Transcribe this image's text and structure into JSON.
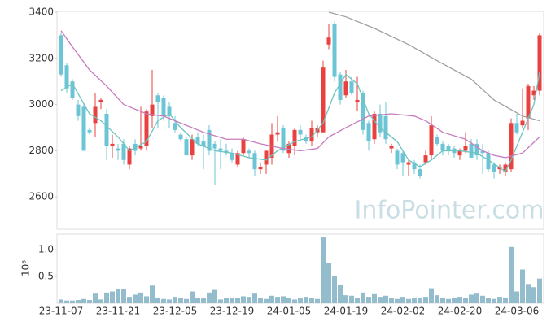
{
  "chart_data": [
    {
      "type": "candlestick",
      "open": [
        3300,
        3170,
        3100,
        3000,
        2990,
        2890,
        2920,
        3010,
        2960,
        2820,
        2810,
        2830,
        2740,
        2830,
        2810,
        2820,
        2950,
        3040,
        3030,
        2990,
        2920,
        2870,
        2850,
        2780,
        2860,
        2840,
        2890,
        2830,
        2810,
        2800,
        2790,
        2740,
        2790,
        2800,
        2790,
        2720,
        2740,
        2770,
        2870,
        2900,
        2790,
        2820,
        2890,
        2860,
        2840,
        2880,
        2880,
        3260,
        3350,
        3130,
        3040,
        3100,
        3010,
        3050,
        2920,
        2850,
        2960,
        2950,
        2810,
        2800,
        2790,
        2740,
        2750,
        2720,
        2750,
        2780,
        2860,
        2830,
        2820,
        2810,
        2780,
        2800,
        2830,
        2830,
        2800,
        2790,
        2740,
        2720,
        2710,
        2720,
        2920,
        2910,
        2940,
        3040,
        3060
      ],
      "high": [
        3310,
        3180,
        3110,
        3020,
        3000,
        2900,
        3050,
        3030,
        2980,
        2870,
        2830,
        2850,
        2820,
        2850,
        2990,
        2980,
        3150,
        3050,
        3040,
        3010,
        2950,
        2880,
        2860,
        2870,
        2880,
        2870,
        2910,
        2840,
        2850,
        2830,
        2810,
        2800,
        2860,
        2810,
        2800,
        2750,
        2800,
        2920,
        2950,
        2910,
        2840,
        2900,
        2910,
        2870,
        2930,
        2910,
        3190,
        3350,
        3360,
        3140,
        3150,
        3120,
        3120,
        3060,
        2930,
        2970,
        3000,
        3010,
        2830,
        2810,
        2800,
        2760,
        2760,
        2740,
        2800,
        2950,
        2870,
        2840,
        2830,
        2820,
        2810,
        2880,
        2850,
        2850,
        2830,
        2800,
        2750,
        2740,
        2750,
        2940,
        2960,
        3070,
        3090,
        3080,
        3310
      ],
      "low": [
        3120,
        3050,
        3020,
        2930,
        2800,
        2870,
        2860,
        2980,
        2760,
        2770,
        2760,
        2740,
        2720,
        2780,
        2800,
        2800,
        2900,
        2900,
        2930,
        2900,
        2880,
        2840,
        2780,
        2760,
        2820,
        2720,
        2780,
        2650,
        2720,
        2780,
        2750,
        2730,
        2780,
        2770,
        2690,
        2700,
        2700,
        2740,
        2840,
        2790,
        2770,
        2780,
        2850,
        2830,
        2820,
        2860,
        2880,
        3240,
        3100,
        3000,
        3030,
        3040,
        2970,
        2870,
        2800,
        2830,
        2860,
        2830,
        2790,
        2720,
        2690,
        2690,
        2700,
        2680,
        2740,
        2760,
        2820,
        2780,
        2780,
        2770,
        2760,
        2790,
        2770,
        2760,
        2700,
        2710,
        2680,
        2700,
        2690,
        2710,
        2870,
        2900,
        2890,
        3020,
        3040
      ],
      "close": [
        3130,
        3070,
        3030,
        2950,
        2800,
        2880,
        2990,
        3020,
        2820,
        2830,
        2800,
        2760,
        2810,
        2800,
        2820,
        2970,
        3000,
        3010,
        2950,
        2950,
        2890,
        2850,
        2780,
        2850,
        2830,
        2820,
        2800,
        2810,
        2800,
        2790,
        2760,
        2790,
        2850,
        2790,
        2720,
        2730,
        2800,
        2870,
        2880,
        2800,
        2830,
        2890,
        2870,
        2840,
        2900,
        2900,
        3160,
        3290,
        3120,
        3020,
        3100,
        3050,
        3020,
        2890,
        2840,
        2960,
        2880,
        2850,
        2820,
        2740,
        2750,
        2750,
        2720,
        2690,
        2780,
        2910,
        2830,
        2800,
        2800,
        2790,
        2800,
        2820,
        2770,
        2780,
        2790,
        2720,
        2710,
        2730,
        2740,
        2920,
        2880,
        2930,
        3080,
        3060,
        3300
      ],
      "up_color": "#e8413f",
      "down_color": "#6cc4d4",
      "series": [
        {
          "color": "#6cc4c0",
          "x": [
            0,
            2,
            5,
            7,
            10,
            12,
            15,
            17,
            19,
            21,
            24,
            27,
            30,
            33,
            36,
            38,
            41,
            44,
            46,
            48,
            50,
            52,
            54,
            56,
            59,
            61,
            63,
            65,
            67,
            70,
            73,
            75,
            78,
            79,
            81,
            83,
            84
          ],
          "values": [
            3060,
            3090,
            2960,
            2930,
            2860,
            2800,
            2840,
            2930,
            2960,
            2900,
            2830,
            2800,
            2790,
            2770,
            2760,
            2800,
            2840,
            2860,
            2920,
            3050,
            3130,
            3090,
            2960,
            2900,
            2840,
            2760,
            2730,
            2760,
            2800,
            2800,
            2790,
            2760,
            2710,
            2760,
            2880,
            3000,
            3140
          ]
        },
        {
          "color": "#c77bbd",
          "x": [
            0,
            2,
            5,
            8,
            11,
            15,
            18,
            21,
            25,
            29,
            32,
            35,
            39,
            42,
            45,
            47,
            50,
            54,
            58,
            62,
            64,
            67,
            71,
            74,
            76,
            78,
            81,
            84
          ],
          "values": [
            3320,
            3250,
            3150,
            3080,
            3000,
            2960,
            2950,
            2920,
            2880,
            2850,
            2850,
            2830,
            2810,
            2800,
            2810,
            2860,
            2900,
            2950,
            2960,
            2950,
            2930,
            2880,
            2850,
            2800,
            2780,
            2770,
            2790,
            2860
          ]
        },
        {
          "color": "#a0a0a0",
          "x": [
            47,
            50,
            55,
            61,
            66,
            72,
            76,
            81,
            84
          ],
          "values": [
            3400,
            3380,
            3330,
            3260,
            3190,
            3110,
            3020,
            2950,
            2930
          ]
        }
      ],
      "ylim": [
        2460,
        3400
      ],
      "yticks": [
        2600,
        2800,
        3000,
        3200,
        3400
      ],
      "watermark": "InfoPointer.com"
    },
    {
      "type": "bar",
      "categories": [
        "23-11-07",
        null,
        null,
        null,
        null,
        null,
        null,
        null,
        null,
        null,
        "23-11-21",
        null,
        null,
        null,
        null,
        null,
        null,
        null,
        null,
        null,
        "23-12-05",
        null,
        null,
        null,
        null,
        null,
        null,
        null,
        null,
        null,
        "23-12-19",
        null,
        null,
        null,
        null,
        null,
        null,
        null,
        null,
        null,
        "24-01-05",
        null,
        null,
        null,
        null,
        null,
        null,
        null,
        null,
        null,
        "24-01-19",
        null,
        null,
        null,
        null,
        null,
        null,
        null,
        null,
        null,
        "24-02-02",
        null,
        null,
        null,
        null,
        null,
        null,
        null,
        null,
        null,
        "24-02-20",
        null,
        null,
        null,
        null,
        null,
        null,
        null,
        null,
        null,
        "24-03-06",
        null,
        null,
        null,
        null
      ],
      "values": [
        0.07,
        0.05,
        0.05,
        0.06,
        0.08,
        0.06,
        0.18,
        0.07,
        0.2,
        0.22,
        0.26,
        0.27,
        0.12,
        0.16,
        0.2,
        0.13,
        0.33,
        0.1,
        0.08,
        0.07,
        0.12,
        0.1,
        0.08,
        0.22,
        0.1,
        0.09,
        0.2,
        0.25,
        0.07,
        0.1,
        0.09,
        0.1,
        0.13,
        0.12,
        0.18,
        0.1,
        0.08,
        0.14,
        0.12,
        0.13,
        0.1,
        0.07,
        0.09,
        0.12,
        0.1,
        0.08,
        1.23,
        0.75,
        0.5,
        0.35,
        0.15,
        0.14,
        0.1,
        0.2,
        0.12,
        0.17,
        0.12,
        0.14,
        0.1,
        0.08,
        0.12,
        0.08,
        0.09,
        0.1,
        0.12,
        0.28,
        0.15,
        0.1,
        0.08,
        0.1,
        0.12,
        0.1,
        0.16,
        0.18,
        0.14,
        0.1,
        0.08,
        0.12,
        0.1,
        1.05,
        0.22,
        0.63,
        0.36,
        0.3,
        0.46
      ],
      "color": "#93bccc",
      "ylim": [
        0,
        1.26
      ],
      "yticks": [
        0.5,
        {
          "value": 1,
          "label": "1.0"
        }
      ],
      "ylabel": "10⁶"
    }
  ]
}
